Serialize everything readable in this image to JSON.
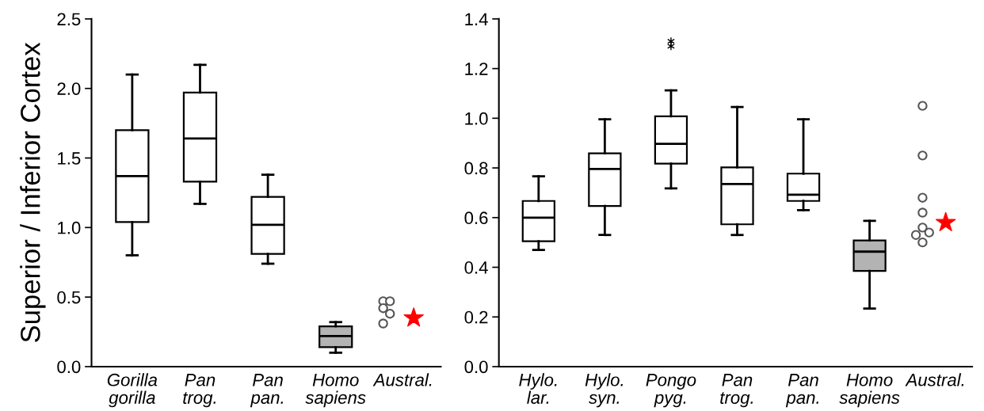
{
  "chart_data": [
    {
      "type": "box",
      "ylabel": "Superior / Inferior Cortex",
      "categories": [
        "Gorilla\ngorilla",
        "Pan\ntrog.",
        "Pan\npan.",
        "Homo\nsapiens",
        "Austral."
      ],
      "ylim": [
        0,
        2.5
      ],
      "yticks": [
        {
          "value": 0,
          "label": "0.0"
        },
        {
          "value": 0.5,
          "label": "0.5"
        },
        {
          "value": 1,
          "label": "1.0"
        },
        {
          "value": 1.5,
          "label": "1.5"
        },
        {
          "value": 2,
          "label": "2.0"
        },
        {
          "value": 2.5,
          "label": "2.5"
        }
      ],
      "grid": false,
      "legend": false,
      "colors": [
        "#ffffff",
        "#ffffff",
        "#ffffff",
        "#b3b3b3",
        null
      ],
      "boxes": [
        {
          "low": 0.8,
          "q1": 1.04,
          "median": 1.37,
          "q3": 1.7,
          "high": 2.1
        },
        {
          "low": 1.17,
          "q1": 1.33,
          "median": 1.64,
          "q3": 1.97,
          "high": 2.17
        },
        {
          "low": 0.74,
          "q1": 0.81,
          "median": 1.02,
          "q3": 1.22,
          "high": 1.38
        },
        {
          "low": 0.1,
          "q1": 0.14,
          "median": 0.22,
          "q3": 0.29,
          "high": 0.32
        },
        null
      ],
      "series": [
        {
          "type": "scatter",
          "marker": "circle",
          "color": "#555555",
          "x": [
            "Austral.",
            "Austral.",
            "Austral."
          ],
          "values": [
            0.47,
            0.42,
            0.31
          ]
        },
        {
          "type": "scatter",
          "marker": "circle",
          "color": "#555555",
          "x": [
            "Austral.",
            "Austral."
          ],
          "values": [
            0.47,
            0.38
          ]
        },
        {
          "type": "scatter",
          "marker": "star",
          "color": "#ff0000",
          "x": [
            "Austral."
          ],
          "values": [
            0.35
          ]
        }
      ]
    },
    {
      "type": "box",
      "categories": [
        "Hylo.\nlar.",
        "Hylo.\nsyn.",
        "Pongo\npyg.",
        "Pan\ntrog.",
        "Pan\npan.",
        "Homo\nsapiens",
        "Austral."
      ],
      "ylim": [
        0,
        1.4
      ],
      "yticks": [
        {
          "value": 0,
          "label": "0.0"
        },
        {
          "value": 0.2,
          "label": "0.2"
        },
        {
          "value": 0.4,
          "label": "0.4"
        },
        {
          "value": 0.6,
          "label": "0.6"
        },
        {
          "value": 0.8,
          "label": "0.8"
        },
        {
          "value": 1,
          "label": "1.0"
        },
        {
          "value": 1.2,
          "label": "1.2"
        },
        {
          "value": 1.4,
          "label": "1.4"
        }
      ],
      "grid": false,
      "legend": false,
      "colors": [
        "#ffffff",
        "#ffffff",
        "#ffffff",
        "#ffffff",
        "#ffffff",
        "#b3b3b3",
        null
      ],
      "boxes": [
        {
          "low": 0.47,
          "q1": 0.505,
          "median": 0.6,
          "q3": 0.667,
          "high": 0.766
        },
        {
          "low": 0.53,
          "q1": 0.647,
          "median": 0.796,
          "q3": 0.859,
          "high": 0.996
        },
        {
          "low": 0.718,
          "q1": 0.817,
          "median": 0.897,
          "q3": 1.008,
          "high": 1.112,
          "outliers": [
            1.29,
            1.31
          ]
        },
        {
          "low": 0.53,
          "q1": 0.573,
          "median": 0.735,
          "q3": 0.802,
          "high": 1.045
        },
        {
          "low": 0.63,
          "q1": 0.667,
          "median": 0.692,
          "q3": 0.777,
          "high": 0.996
        },
        {
          "low": 0.234,
          "q1": 0.385,
          "median": 0.463,
          "q3": 0.508,
          "high": 0.587
        },
        null
      ],
      "series": [
        {
          "type": "scatter",
          "marker": "circle",
          "color": "#555555",
          "x": [
            "Austral."
          ],
          "values": [
            0.53
          ]
        },
        {
          "type": "scatter",
          "marker": "circle",
          "color": "#555555",
          "x": [
            "Austral.",
            "Austral.",
            "Austral.",
            "Austral.",
            "Austral.",
            "Austral."
          ],
          "values": [
            1.05,
            0.85,
            0.68,
            0.62,
            0.56,
            0.5
          ]
        },
        {
          "type": "scatter",
          "marker": "circle",
          "color": "#555555",
          "x": [
            "Austral."
          ],
          "values": [
            0.54
          ]
        },
        {
          "type": "scatter",
          "marker": "star",
          "color": "#ff0000",
          "x": [
            "Austral."
          ],
          "values": [
            0.58
          ]
        }
      ]
    }
  ]
}
